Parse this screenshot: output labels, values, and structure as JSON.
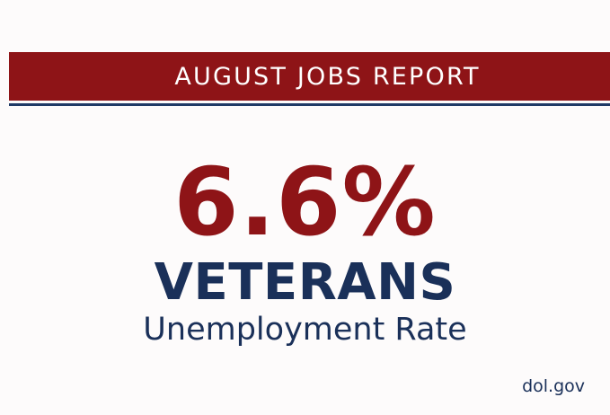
{
  "banner": {
    "title": "AUGUST JOBS REPORT"
  },
  "headline": {
    "value": "6.6%",
    "subject": "VETERANS",
    "metric": "Unemployment Rate"
  },
  "footer": {
    "source": "dol.gov"
  },
  "colors": {
    "banner_red": "#8e1417",
    "number_red": "#8e1417",
    "navy": "#1a3059",
    "rule_blue": "#1f3a66",
    "background": "#fdfbfb"
  }
}
